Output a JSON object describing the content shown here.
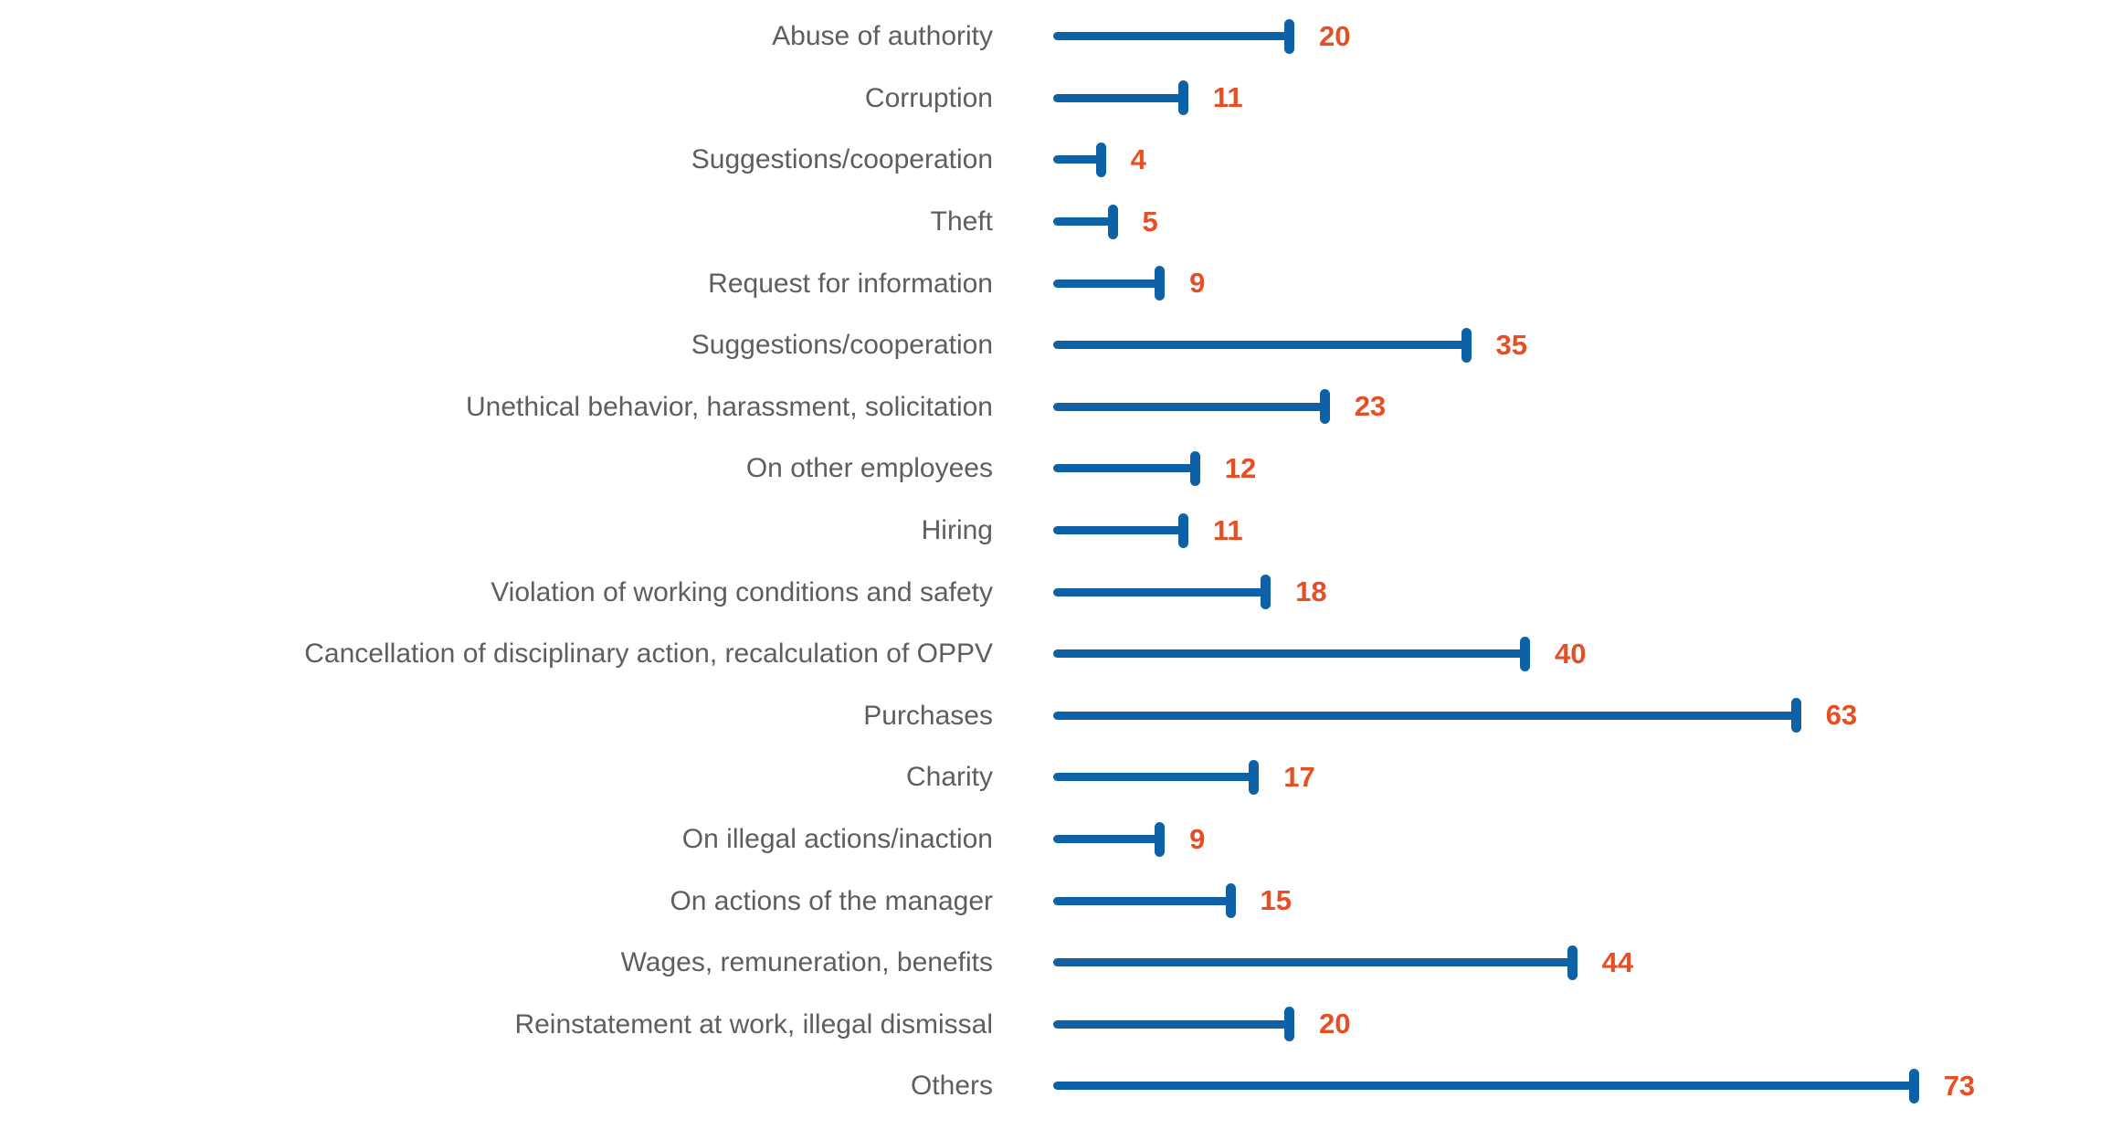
{
  "chart_data": {
    "type": "bar",
    "subtype": "lollipop",
    "orientation": "horizontal",
    "title": "",
    "xlabel": "",
    "ylabel": "",
    "xlim": [
      0,
      80
    ],
    "grid": false,
    "legend": false,
    "value_labels_shown": true,
    "categories": [
      "Abuse of authority",
      "Corruption",
      "Suggestions/cooperation",
      "Theft",
      "Request for information",
      "Suggestions/cooperation",
      "Unethical behavior, harassment, solicitation",
      "On other employees",
      "Hiring",
      "Violation of working conditions and safety",
      "Cancellation of disciplinary action, recalculation of OPPV",
      "Purchases",
      "Charity",
      "On illegal actions/inaction",
      "On actions of the manager",
      "Wages, remuneration, benefits",
      "Reinstatement at work, illegal dismissal",
      "Others"
    ],
    "values": [
      20,
      11,
      4,
      5,
      9,
      35,
      23,
      12,
      11,
      18,
      40,
      63,
      17,
      9,
      15,
      44,
      20,
      73
    ],
    "colors": {
      "bar": "#0d62a7",
      "value_label": "#e84e24",
      "category_label": "#5c5e62",
      "background": "#ffffff"
    }
  }
}
